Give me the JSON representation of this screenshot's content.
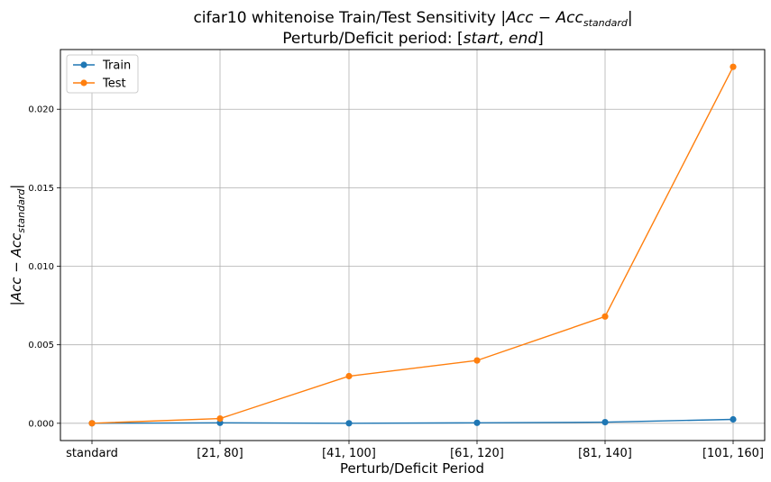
{
  "chart_data": {
    "type": "line",
    "title_line1_prefix": "cifar10 whitenoise Train/Test Sensitivity ",
    "title_math": {
      "open": "|",
      "base": "Acc",
      "minus": " − ",
      "sub": "standard",
      "close": "|"
    },
    "title_line2_prefix": "Perturb/Deficit period: [",
    "title_line2_start": "start",
    "title_line2_sep": ", ",
    "title_line2_end": "end",
    "title_line2_close": "]",
    "xlabel": "Perturb/Deficit Period",
    "ylabel_math": {
      "open": "|",
      "base": "Acc",
      "minus": " − ",
      "sub": "standard",
      "close": "|"
    },
    "categories": [
      "standard",
      "[21, 80]",
      "[41, 100]",
      "[61, 120]",
      "[81, 140]",
      "[101, 160]"
    ],
    "y_ticks": [
      "0.000",
      "0.005",
      "0.010",
      "0.015",
      "0.020"
    ],
    "y_tick_values": [
      0,
      0.005,
      0.01,
      0.015,
      0.02
    ],
    "ylim": [
      -0.0011,
      0.0238
    ],
    "grid": true,
    "legend_position": "top-left",
    "series": [
      {
        "name": "Train",
        "color": "#1f77b4",
        "values": [
          0.0,
          3e-05,
          0.0,
          3e-05,
          7e-05,
          0.00025
        ]
      },
      {
        "name": "Test",
        "color": "#ff7f0e",
        "values": [
          0.0,
          0.0003,
          0.003,
          0.004,
          0.0068,
          0.0227
        ]
      }
    ]
  }
}
